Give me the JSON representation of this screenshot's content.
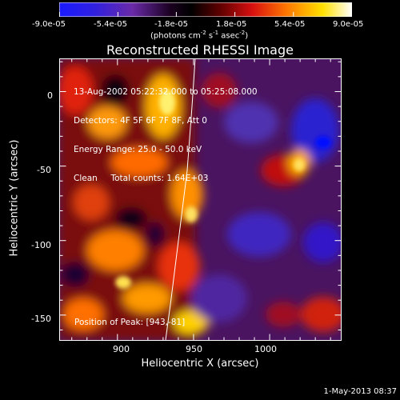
{
  "colorbar": {
    "tick_labels": [
      "-9.0e-05",
      "-5.4e-05",
      "-1.8e-05",
      "1.8e-05",
      "5.4e-05",
      "9.0e-05"
    ],
    "unit_label": "(photons cm",
    "unit_exp1": "-2",
    "unit_mid": " s",
    "unit_exp2": "-1",
    "unit_mid2": " asec",
    "unit_exp3": "-2",
    "unit_end": ")",
    "range": [
      -9e-05,
      9e-05
    ],
    "colormap": "hot (blue-purple-red-orange-yellow-white)"
  },
  "plot": {
    "title": "Reconstructed RHESSI Image",
    "xlabel": "Heliocentric X (arcsec)",
    "ylabel": "Heliocentric Y (arcsec)",
    "x_ticks": [
      "900",
      "950",
      "1000"
    ],
    "y_ticks": [
      "0",
      "-50",
      "-100",
      "-150"
    ],
    "xlim": [
      862,
      1047
    ],
    "ylim": [
      -167,
      22
    ],
    "annotations": [
      "13-Aug-2002 05:22:32.000 to 05:25:08.000",
      "Detectors: 4F 5F 6F 7F 8F, Att 0",
      "Energy Range: 25.0 - 50.0 keV",
      "Clean     Total counts: 1.64E+03"
    ],
    "peak_label": "Position of Peak: [943,-81]",
    "peak_position": [
      943,
      -81
    ]
  },
  "footer": {
    "timestamp": "1-May-2013 08:37"
  }
}
